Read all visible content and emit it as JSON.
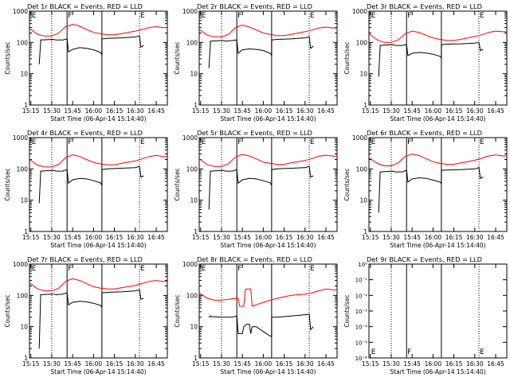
{
  "figure": {
    "xlabel_common": "Start Time (06-Apr-14 15:14:40)",
    "ylabel_common": "Counts/sec",
    "xtick_labels": [
      "15:15",
      "15:30",
      "15:45",
      "16:00",
      "16:15",
      "16:30",
      "16:45"
    ],
    "marker_labels": [
      "E",
      "F",
      "E"
    ],
    "ytick_labels_log": [
      "1",
      "10",
      "100",
      "1000"
    ],
    "ytick_labels_empty": [
      "10⁰",
      "10⁻¹",
      "10⁻²",
      "10⁻³",
      "10⁻⁴",
      "10⁻⁵",
      "10⁻⁶"
    ],
    "colors": {
      "events": "#000000",
      "lld": "#ff0000"
    }
  },
  "chart_data": [
    {
      "type": "line",
      "title": "Det 1r BLACK = Events, RED = LLD",
      "xlabel": "Start Time (06-Apr-14 15:14:40)",
      "ylabel": "Counts/sec",
      "yscale": "log",
      "ylim": [
        1,
        1000
      ],
      "xlim": [
        "15:14",
        "16:53"
      ],
      "series": [
        {
          "name": "Events",
          "color": "#000000",
          "x": [
            "15:21",
            "15:22",
            "15:22",
            "15:31",
            "15:33",
            "15:38",
            "15:41",
            "15:42",
            "15:45",
            "15:50",
            "15:55",
            "16:00",
            "16:05",
            "16:06",
            "16:06",
            "16:10",
            "16:20",
            "16:30",
            "16:33",
            "16:34",
            "16:36"
          ],
          "values": [
            20,
            100,
            120,
            125,
            120,
            120,
            130,
            50,
            60,
            68,
            65,
            58,
            48,
            40,
            130,
            135,
            140,
            150,
            160,
            70,
            80
          ]
        },
        {
          "name": "LLD",
          "color": "#ff0000",
          "x": [
            "15:14",
            "15:20",
            "15:25",
            "15:30",
            "15:35",
            "15:40",
            "15:45",
            "15:50",
            "15:55",
            "16:00",
            "16:05",
            "16:10",
            "16:15",
            "16:20",
            "16:25",
            "16:30",
            "16:35",
            "16:40",
            "16:45",
            "16:50",
            "16:53"
          ],
          "values": [
            280,
            180,
            160,
            160,
            200,
            320,
            380,
            330,
            260,
            210,
            190,
            175,
            175,
            190,
            210,
            230,
            260,
            300,
            320,
            300,
            300
          ]
        }
      ]
    },
    {
      "type": "line",
      "title": "Det 2r BLACK = Events, RED = LLD",
      "xlabel": "Start Time (06-Apr-14 15:14:40)",
      "ylabel": "Counts/sec",
      "yscale": "log",
      "ylim": [
        1,
        1000
      ],
      "xlim": [
        "15:14",
        "16:53"
      ],
      "series": [
        {
          "name": "Events",
          "color": "#000000",
          "x": [
            "15:21",
            "15:22",
            "15:22",
            "15:31",
            "15:33",
            "15:38",
            "15:41",
            "15:42",
            "15:45",
            "15:50",
            "15:55",
            "16:00",
            "16:05",
            "16:06",
            "16:06",
            "16:10",
            "16:20",
            "16:30",
            "16:33",
            "16:34",
            "16:36"
          ],
          "values": [
            15,
            90,
            110,
            115,
            110,
            115,
            120,
            45,
            58,
            62,
            60,
            55,
            45,
            38,
            120,
            125,
            130,
            140,
            150,
            65,
            75
          ]
        },
        {
          "name": "LLD",
          "color": "#ff0000",
          "x": [
            "15:14",
            "15:20",
            "15:25",
            "15:30",
            "15:35",
            "15:40",
            "15:45",
            "15:50",
            "15:55",
            "16:00",
            "16:05",
            "16:10",
            "16:15",
            "16:20",
            "16:25",
            "16:30",
            "16:35",
            "16:40",
            "16:45",
            "16:50",
            "16:53"
          ],
          "values": [
            260,
            170,
            150,
            150,
            180,
            300,
            360,
            310,
            250,
            200,
            180,
            165,
            165,
            180,
            200,
            220,
            250,
            290,
            310,
            290,
            290
          ]
        }
      ]
    },
    {
      "type": "line",
      "title": "Det 3r BLACK = Events, RED = LLD",
      "xlabel": "Start Time (06-Apr-14 15:14:40)",
      "ylabel": "Counts/sec",
      "yscale": "log",
      "ylim": [
        1,
        1000
      ],
      "xlim": [
        "15:14",
        "16:53"
      ],
      "series": [
        {
          "name": "Events",
          "color": "#000000",
          "x": [
            "15:21",
            "15:22",
            "15:22",
            "15:31",
            "15:33",
            "15:38",
            "15:41",
            "15:42",
            "15:45",
            "15:50",
            "15:55",
            "16:00",
            "16:05",
            "16:06",
            "16:06",
            "16:10",
            "16:20",
            "16:30",
            "16:33",
            "16:34",
            "16:36"
          ],
          "values": [
            8,
            70,
            80,
            85,
            80,
            80,
            85,
            38,
            45,
            48,
            46,
            42,
            36,
            32,
            85,
            88,
            90,
            95,
            100,
            55,
            60
          ]
        },
        {
          "name": "LLD",
          "color": "#ff0000",
          "x": [
            "15:14",
            "15:20",
            "15:25",
            "15:30",
            "15:35",
            "15:40",
            "15:45",
            "15:50",
            "15:55",
            "16:00",
            "16:05",
            "16:10",
            "16:15",
            "16:20",
            "16:25",
            "16:30",
            "16:35",
            "16:40",
            "16:45",
            "16:50",
            "16:53"
          ],
          "values": [
            190,
            120,
            100,
            100,
            120,
            190,
            230,
            210,
            170,
            140,
            125,
            115,
            115,
            125,
            140,
            155,
            175,
            210,
            230,
            220,
            220
          ]
        }
      ]
    },
    {
      "type": "line",
      "title": "Det 4r BLACK = Events, RED = LLD",
      "xlabel": "Start Time (06-Apr-14 15:14:40)",
      "ylabel": "Counts/sec",
      "yscale": "log",
      "ylim": [
        1,
        1000
      ],
      "xlim": [
        "15:14",
        "16:53"
      ],
      "series": [
        {
          "name": "Events",
          "color": "#000000",
          "x": [
            "15:21",
            "15:22",
            "15:22",
            "15:31",
            "15:33",
            "15:38",
            "15:41",
            "15:42",
            "15:45",
            "15:50",
            "15:55",
            "16:00",
            "16:05",
            "16:06",
            "16:06",
            "16:10",
            "16:20",
            "16:30",
            "16:33",
            "16:34",
            "16:36"
          ],
          "values": [
            8,
            75,
            85,
            90,
            85,
            85,
            95,
            35,
            45,
            50,
            48,
            42,
            36,
            30,
            95,
            100,
            105,
            110,
            120,
            55,
            60
          ]
        },
        {
          "name": "LLD",
          "color": "#ff0000",
          "x": [
            "15:14",
            "15:20",
            "15:25",
            "15:30",
            "15:35",
            "15:40",
            "15:45",
            "15:50",
            "15:55",
            "16:00",
            "16:05",
            "16:10",
            "16:15",
            "16:20",
            "16:25",
            "16:30",
            "16:35",
            "16:40",
            "16:45",
            "16:50",
            "16:53"
          ],
          "values": [
            200,
            130,
            115,
            115,
            140,
            230,
            280,
            250,
            200,
            160,
            145,
            135,
            135,
            150,
            165,
            180,
            210,
            250,
            270,
            250,
            250
          ]
        }
      ]
    },
    {
      "type": "line",
      "title": "Det 5r BLACK = Events, RED = LLD",
      "xlabel": "Start Time (06-Apr-14 15:14:40)",
      "ylabel": "Counts/sec",
      "yscale": "log",
      "ylim": [
        1,
        1000
      ],
      "xlim": [
        "15:14",
        "16:53"
      ],
      "series": [
        {
          "name": "Events",
          "color": "#000000",
          "x": [
            "15:21",
            "15:22",
            "15:22",
            "15:31",
            "15:33",
            "15:38",
            "15:41",
            "15:42",
            "15:45",
            "15:50",
            "15:55",
            "16:00",
            "16:05",
            "16:06",
            "16:06",
            "16:10",
            "16:20",
            "16:30",
            "16:33",
            "16:34",
            "16:36"
          ],
          "values": [
            5,
            80,
            85,
            90,
            85,
            85,
            95,
            35,
            45,
            50,
            48,
            42,
            36,
            30,
            95,
            100,
            105,
            110,
            120,
            55,
            60
          ]
        },
        {
          "name": "LLD",
          "color": "#ff0000",
          "x": [
            "15:14",
            "15:20",
            "15:25",
            "15:30",
            "15:35",
            "15:40",
            "15:45",
            "15:50",
            "15:55",
            "16:00",
            "16:05",
            "16:10",
            "16:15",
            "16:20",
            "16:25",
            "16:30",
            "16:35",
            "16:40",
            "16:45",
            "16:50",
            "16:53"
          ],
          "values": [
            210,
            135,
            120,
            120,
            145,
            240,
            290,
            260,
            210,
            165,
            150,
            140,
            140,
            155,
            170,
            185,
            215,
            255,
            275,
            255,
            255
          ]
        }
      ]
    },
    {
      "type": "line",
      "title": "Det 6r BLACK = Events, RED = LLD",
      "xlabel": "Start Time (06-Apr-14 15:14:40)",
      "ylabel": "Counts/sec",
      "yscale": "log",
      "ylim": [
        1,
        1000
      ],
      "xlim": [
        "15:14",
        "16:53"
      ],
      "series": [
        {
          "name": "Events",
          "color": "#000000",
          "x": [
            "15:21",
            "15:22",
            "15:22",
            "15:31",
            "15:33",
            "15:38",
            "15:41",
            "15:42",
            "15:45",
            "15:50",
            "15:55",
            "16:00",
            "16:05",
            "16:06",
            "16:06",
            "16:10",
            "16:20",
            "16:30",
            "16:33",
            "16:34",
            "16:36"
          ],
          "values": [
            4,
            70,
            80,
            85,
            80,
            80,
            90,
            38,
            48,
            52,
            50,
            44,
            38,
            34,
            90,
            92,
            95,
            100,
            110,
            50,
            55
          ]
        },
        {
          "name": "LLD",
          "color": "#ff0000",
          "x": [
            "15:14",
            "15:20",
            "15:25",
            "15:30",
            "15:35",
            "15:40",
            "15:45",
            "15:50",
            "15:55",
            "16:00",
            "16:05",
            "16:10",
            "16:15",
            "16:20",
            "16:25",
            "16:30",
            "16:35",
            "16:40",
            "16:45",
            "16:50",
            "16:53"
          ],
          "values": [
            230,
            150,
            125,
            125,
            155,
            250,
            300,
            270,
            215,
            170,
            150,
            140,
            140,
            155,
            170,
            190,
            220,
            260,
            280,
            260,
            260
          ]
        }
      ]
    },
    {
      "type": "line",
      "title": "Det 7r BLACK = Events, RED = LLD",
      "xlabel": "Start Time (06-Apr-14 15:14:40)",
      "ylabel": "Counts/sec",
      "yscale": "log",
      "ylim": [
        1,
        1000
      ],
      "xlim": [
        "15:14",
        "16:53"
      ],
      "series": [
        {
          "name": "Events",
          "color": "#000000",
          "x": [
            "15:21",
            "15:22",
            "15:22",
            "15:31",
            "15:33",
            "15:38",
            "15:41",
            "15:42",
            "15:45",
            "15:50",
            "15:55",
            "16:00",
            "16:05",
            "16:06",
            "16:06",
            "16:10",
            "16:20",
            "16:30",
            "16:33",
            "16:34",
            "16:36"
          ],
          "values": [
            2,
            95,
            105,
            110,
            105,
            110,
            120,
            50,
            60,
            65,
            62,
            56,
            48,
            42,
            120,
            125,
            130,
            140,
            150,
            75,
            80
          ]
        },
        {
          "name": "LLD",
          "color": "#ff0000",
          "x": [
            "15:14",
            "15:20",
            "15:25",
            "15:30",
            "15:35",
            "15:40",
            "15:45",
            "15:50",
            "15:55",
            "16:00",
            "16:05",
            "16:10",
            "16:15",
            "16:20",
            "16:25",
            "16:30",
            "16:35",
            "16:40",
            "16:45",
            "16:50",
            "16:53"
          ],
          "values": [
            250,
            160,
            140,
            140,
            170,
            280,
            340,
            300,
            240,
            190,
            170,
            160,
            160,
            175,
            190,
            210,
            240,
            280,
            300,
            280,
            280
          ]
        }
      ]
    },
    {
      "type": "line",
      "title": "Det 8r BLACK = Events, RED = LLD",
      "xlabel": "Start Time (06-Apr-14 15:14:40)",
      "ylabel": "Counts/sec",
      "yscale": "log",
      "ylim": [
        1,
        1000
      ],
      "xlim": [
        "15:14",
        "16:53"
      ],
      "series": [
        {
          "name": "Events",
          "color": "#000000",
          "x": [
            "15:21",
            "15:22",
            "15:22",
            "15:31",
            "15:33",
            "15:38",
            "15:41",
            "15:42",
            "15:45",
            "15:46",
            "15:48",
            "15:50",
            "15:51",
            "15:52",
            "15:55",
            "16:00",
            "16:05",
            "16:06",
            "16:06",
            "16:10",
            "16:20",
            "16:30",
            "16:33",
            "16:34",
            "16:36"
          ],
          "values": [
            20,
            22,
            21,
            20,
            20,
            20,
            22,
            6,
            6,
            10,
            12,
            12,
            6,
            10,
            10,
            7,
            5,
            5,
            20,
            20,
            22,
            24,
            25,
            8,
            10
          ]
        },
        {
          "name": "LLD",
          "color": "#ff0000",
          "x": [
            "15:14",
            "15:20",
            "15:25",
            "15:30",
            "15:35",
            "15:40",
            "15:42",
            "15:43",
            "15:46",
            "15:47",
            "15:48",
            "15:51",
            "15:52",
            "15:55",
            "16:00",
            "16:05",
            "16:10",
            "16:15",
            "16:20",
            "16:25",
            "16:30",
            "16:35",
            "16:40",
            "16:45",
            "16:50",
            "16:53"
          ],
          "values": [
            120,
            80,
            70,
            70,
            75,
            80,
            80,
            45,
            45,
            150,
            160,
            160,
            45,
            50,
            60,
            70,
            80,
            90,
            100,
            105,
            110,
            120,
            140,
            160,
            150,
            150
          ]
        }
      ]
    },
    {
      "type": "line",
      "title": "Det 9r BLACK = Events, RED = LLD",
      "xlabel": "Start Time (06-Apr-14 15:14:40)",
      "ylabel": "Counts/sec",
      "yscale": "log",
      "ylim": [
        1e-06,
        1
      ],
      "xlim": [
        "15:14",
        "16:53"
      ],
      "series": []
    }
  ]
}
